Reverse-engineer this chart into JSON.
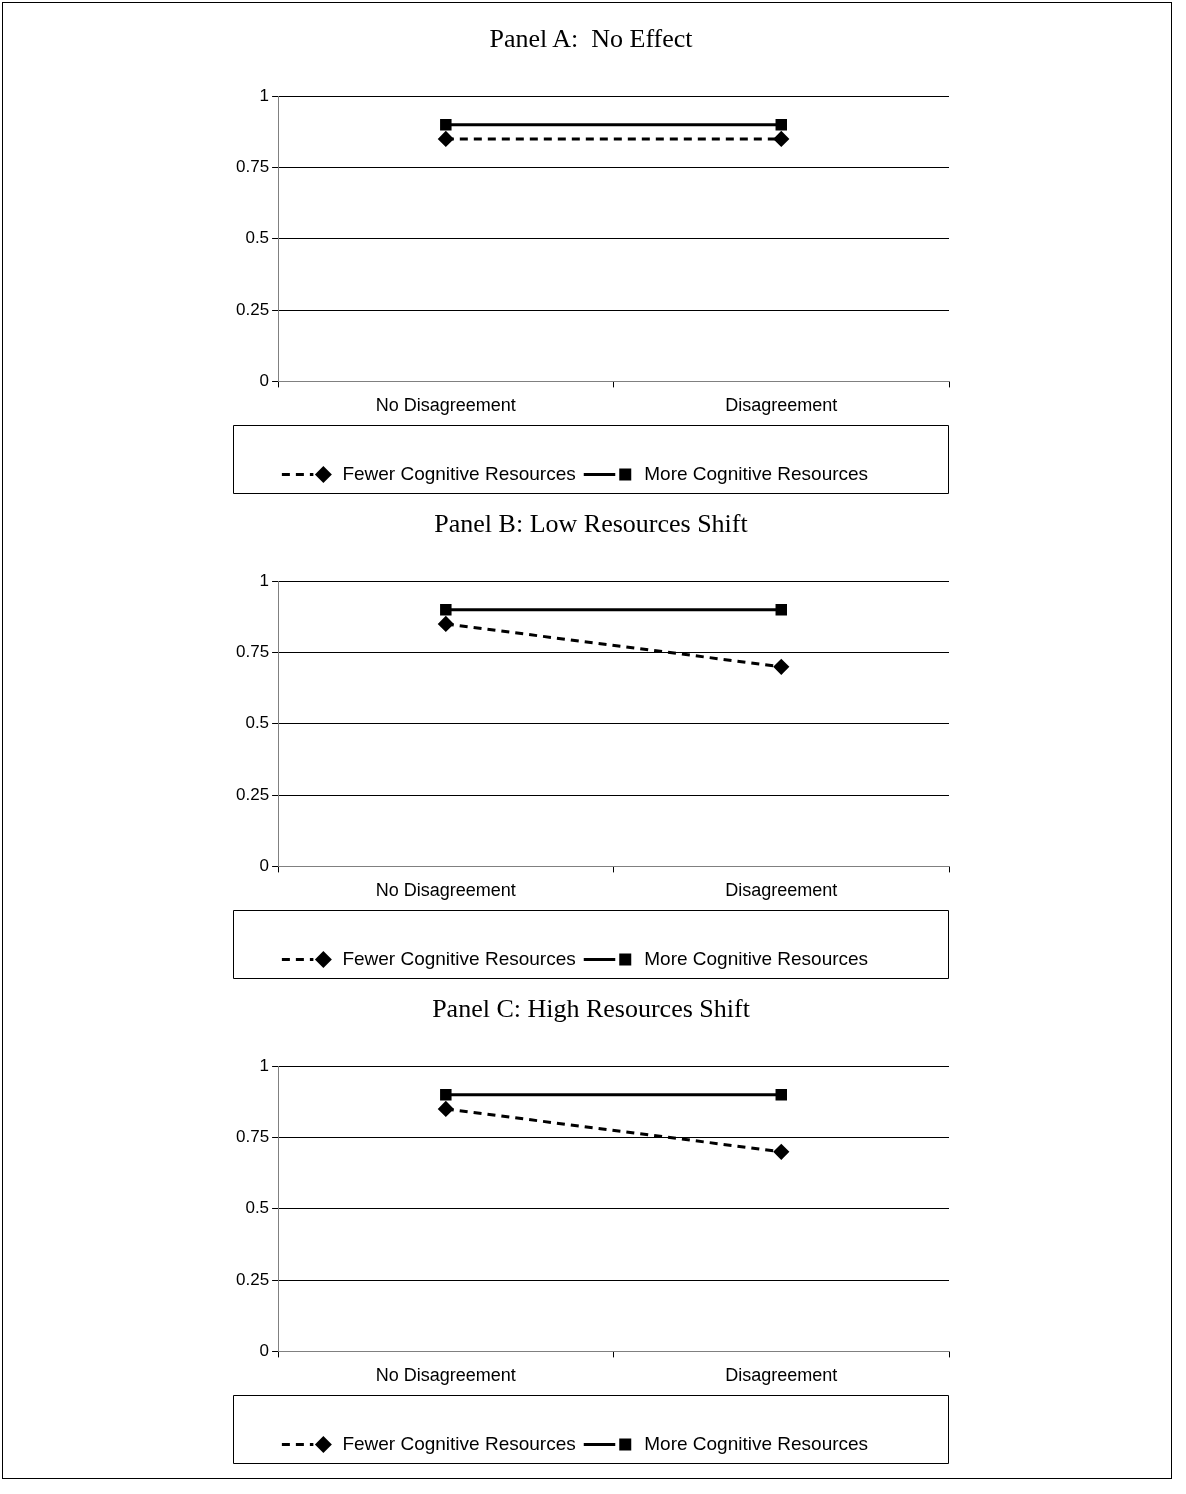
{
  "chart_data": [
    {
      "type": "line",
      "title": "Panel A:  No Effect",
      "categories": [
        "No Disagreement",
        "Disagreement"
      ],
      "series": [
        {
          "name": "Fewer Cognitive Resources",
          "color": "#000000",
          "values": [
            0.85,
            0.85
          ],
          "line_style": "dashed",
          "marker": "diamond"
        },
        {
          "name": "More Cognitive Resources",
          "color": "#000000",
          "values": [
            0.9,
            0.9
          ],
          "line_style": "solid",
          "marker": "square"
        }
      ],
      "ylim": [
        0,
        1
      ],
      "yticks": [
        0,
        0.25,
        0.5,
        0.75,
        1
      ],
      "grid": "y",
      "legend": "bottom"
    },
    {
      "type": "line",
      "title": "Panel B: Low Resources Shift",
      "categories": [
        "No Disagreement",
        "Disagreement"
      ],
      "series": [
        {
          "name": "Fewer Cognitive Resources",
          "color": "#000000",
          "values": [
            0.85,
            0.7
          ],
          "line_style": "dashed",
          "marker": "diamond"
        },
        {
          "name": "More Cognitive Resources",
          "color": "#000000",
          "values": [
            0.9,
            0.9
          ],
          "line_style": "solid",
          "marker": "square"
        }
      ],
      "ylim": [
        0,
        1
      ],
      "yticks": [
        0,
        0.25,
        0.5,
        0.75,
        1
      ],
      "grid": "y",
      "legend": "bottom"
    },
    {
      "type": "line",
      "title": "Panel C: High Resources Shift",
      "categories": [
        "No Disagreement",
        "Disagreement"
      ],
      "series": [
        {
          "name": "Fewer Cognitive Resources",
          "color": "#000000",
          "values": [
            0.85,
            0.7
          ],
          "line_style": "dashed",
          "marker": "diamond"
        },
        {
          "name": "More Cognitive Resources",
          "color": "#000000",
          "values": [
            0.9,
            0.9
          ],
          "line_style": "solid",
          "marker": "square"
        }
      ],
      "ylim": [
        0,
        1
      ],
      "yticks": [
        0,
        0.25,
        0.5,
        0.75,
        1
      ],
      "grid": "y",
      "legend": "bottom"
    }
  ]
}
